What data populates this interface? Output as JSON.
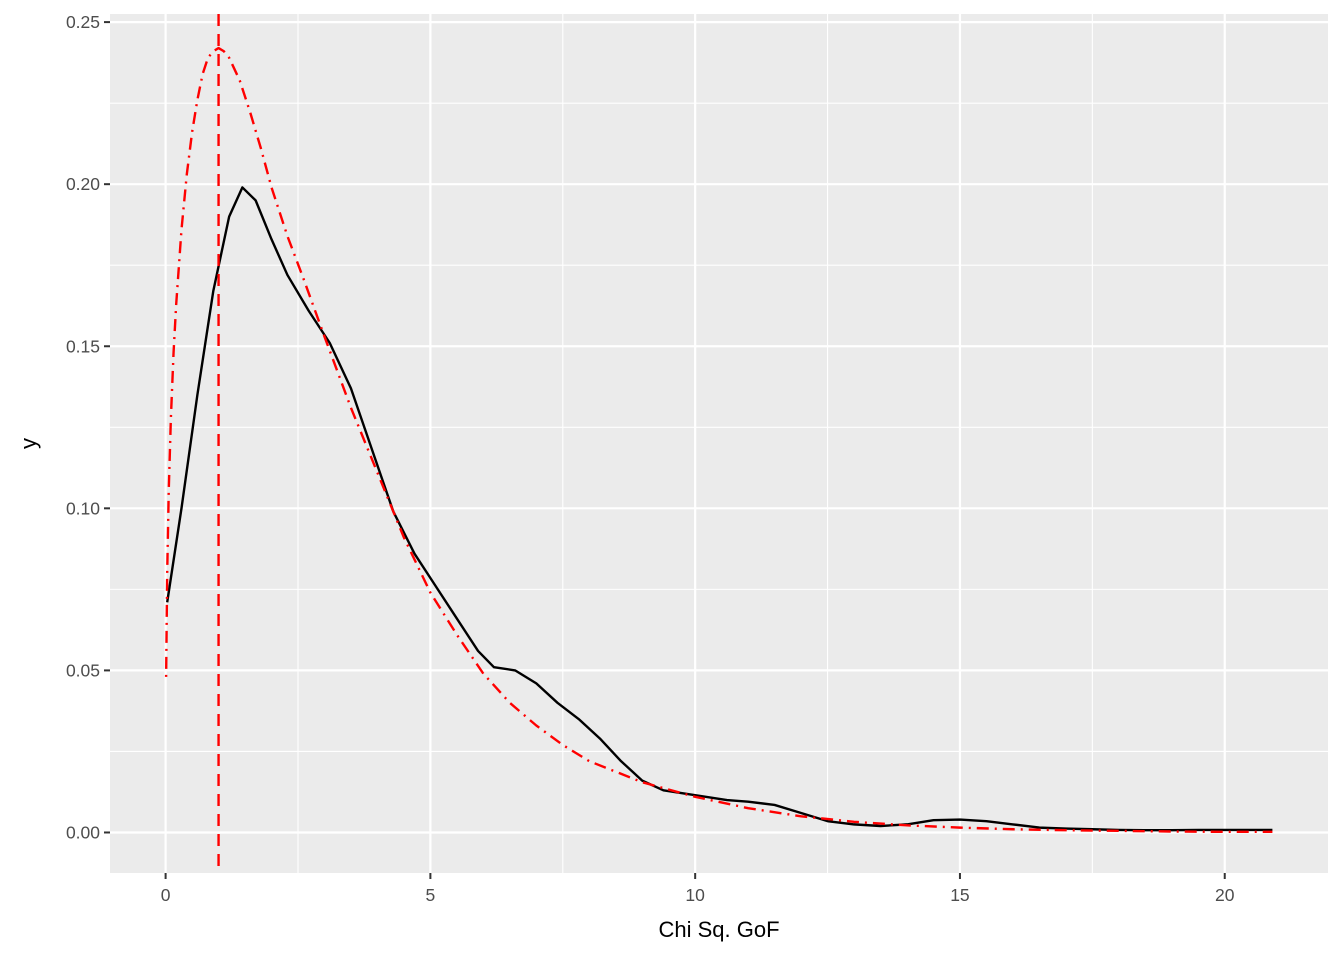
{
  "chart_data": {
    "type": "line",
    "title": "",
    "xlabel": "Chi Sq. GoF",
    "ylabel": "y",
    "xlim": [
      -1.05,
      21.95
    ],
    "ylim": [
      -0.0125,
      0.2525
    ],
    "x_ticks": [
      0,
      5,
      10,
      15,
      20
    ],
    "x_tick_labels": [
      "0",
      "5",
      "10",
      "15",
      "20"
    ],
    "y_ticks": [
      0.0,
      0.05,
      0.1,
      0.15,
      0.2,
      0.25
    ],
    "y_tick_labels": [
      "0.00",
      "0.05",
      "0.10",
      "0.15",
      "0.20",
      "0.25"
    ],
    "grid": true,
    "legend": "none",
    "colors": {
      "panel_background": "#ebebeb",
      "grid_line": "#ffffff",
      "density_line": "#000000",
      "reference_line": "#ff0000"
    },
    "series": [
      {
        "style": "solid",
        "color": "#000000",
        "x": [
          0.03,
          0.3,
          0.6,
          0.9,
          1.2,
          1.45,
          1.7,
          2.0,
          2.3,
          2.7,
          3.1,
          3.5,
          3.9,
          4.3,
          4.7,
          5.1,
          5.5,
          5.9,
          6.2,
          6.6,
          7.0,
          7.4,
          7.8,
          8.2,
          8.6,
          9.0,
          9.4,
          9.8,
          10.2,
          10.6,
          11.0,
          11.5,
          12.0,
          12.5,
          13.0,
          13.5,
          14.0,
          14.5,
          15.0,
          15.5,
          16.0,
          16.5,
          17.0,
          17.5,
          18.0,
          18.5,
          19.0,
          19.5,
          20.0,
          20.5,
          20.9
        ],
        "y": [
          0.071,
          0.1,
          0.135,
          0.167,
          0.19,
          0.199,
          0.195,
          0.183,
          0.172,
          0.161,
          0.151,
          0.137,
          0.118,
          0.099,
          0.086,
          0.076,
          0.066,
          0.056,
          0.051,
          0.05,
          0.046,
          0.04,
          0.035,
          0.029,
          0.022,
          0.016,
          0.013,
          0.012,
          0.011,
          0.01,
          0.0095,
          0.0085,
          0.006,
          0.0035,
          0.0025,
          0.002,
          0.0025,
          0.0038,
          0.004,
          0.0035,
          0.0025,
          0.0015,
          0.0012,
          0.001,
          0.0008,
          0.0007,
          0.0007,
          0.0008,
          0.0008,
          0.0008,
          0.0008
        ]
      },
      {
        "style": "dot-dash",
        "color": "#ff0000",
        "x": [
          0.01,
          0.03,
          0.06,
          0.1,
          0.15,
          0.2,
          0.3,
          0.4,
          0.5,
          0.6,
          0.7,
          0.8,
          0.9,
          1.0,
          1.1,
          1.2,
          1.4,
          1.6,
          1.8,
          2.0,
          2.3,
          2.6,
          3.0,
          3.5,
          4.0,
          4.5,
          5.0,
          5.5,
          6.0,
          6.5,
          7.0,
          7.5,
          8.0,
          9.0,
          10.0,
          11.0,
          12.0,
          13.0,
          14.0,
          15.0,
          16.0,
          17.0,
          18.0,
          19.0,
          20.0,
          20.9
        ],
        "y": [
          0.048,
          0.08,
          0.106,
          0.128,
          0.148,
          0.163,
          0.186,
          0.203,
          0.216,
          0.226,
          0.234,
          0.239,
          0.241,
          0.242,
          0.241,
          0.239,
          0.232,
          0.222,
          0.211,
          0.199,
          0.184,
          0.171,
          0.153,
          0.131,
          0.111,
          0.091,
          0.074,
          0.061,
          0.049,
          0.04,
          0.033,
          0.027,
          0.022,
          0.0155,
          0.011,
          0.0075,
          0.005,
          0.0033,
          0.0022,
          0.0015,
          0.001,
          0.0007,
          0.0005,
          0.0003,
          0.0002,
          0.0002
        ]
      }
    ],
    "vline": {
      "x": 1.0,
      "style": "dashed",
      "color": "#ff0000"
    }
  }
}
